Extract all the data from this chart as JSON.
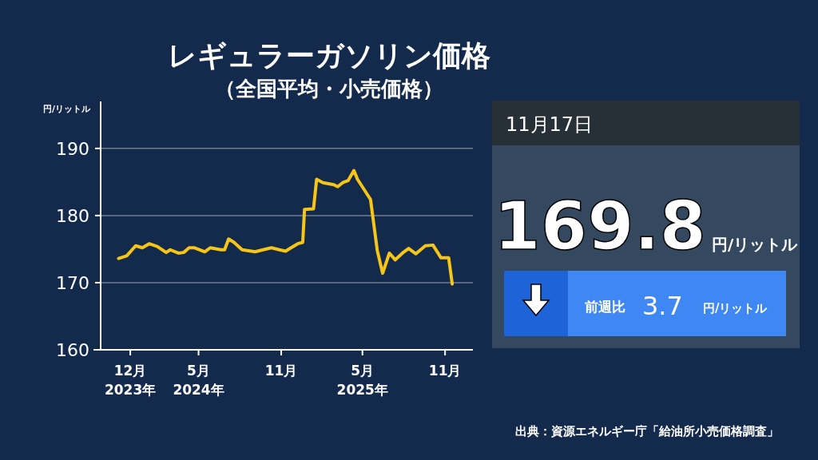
{
  "chart_data": {
    "type": "line",
    "title": "レギュラーガソリン価格",
    "subtitle": "（全国平均・小売価格）",
    "ylabel": "円/リットル",
    "x": [
      "2023-11-05",
      "2023-11-23",
      "2023-12-13",
      "2023-12-28",
      "2024-01-12",
      "2024-01-30",
      "2024-02-19",
      "2024-02-28",
      "2024-03-17",
      "2024-03-29",
      "2024-04-10",
      "2024-04-21",
      "2024-05-15",
      "2024-05-27",
      "2024-06-20",
      "2024-06-28",
      "2024-07-07",
      "2024-07-19",
      "2024-08-06",
      "2024-09-04",
      "2024-10-10",
      "2024-10-28",
      "2024-11-11",
      "2024-11-23",
      "2024-12-08",
      "2024-12-19",
      "2024-12-23",
      "2025-01-12",
      "2025-01-19",
      "2025-02-02",
      "2025-02-26",
      "2025-03-07",
      "2025-03-18",
      "2025-03-30",
      "2025-04-12",
      "2025-04-20",
      "2025-05-19",
      "2025-06-03",
      "2025-06-15",
      "2025-06-30",
      "2025-07-13",
      "2025-07-29",
      "2025-08-12",
      "2025-08-28",
      "2025-09-18",
      "2025-10-05",
      "2025-10-23",
      "2025-11-09",
      "2025-11-17"
    ],
    "series": [
      {
        "color": "#f5c518",
        "values": [
          173.6,
          174.0,
          175.5,
          175.2,
          175.8,
          175.4,
          174.5,
          174.9,
          174.4,
          174.5,
          175.2,
          175.2,
          174.6,
          175.2,
          174.9,
          174.9,
          176.5,
          176.0,
          174.9,
          174.6,
          175.2,
          174.9,
          174.7,
          175.2,
          175.8,
          176.0,
          180.9,
          181.0,
          185.4,
          184.9,
          184.6,
          184.3,
          184.9,
          185.2,
          186.7,
          185.4,
          182.4,
          174.8,
          171.4,
          174.4,
          173.4,
          174.4,
          175.1,
          174.3,
          175.5,
          175.6,
          173.7,
          173.7,
          169.8
        ]
      }
    ],
    "xlim": [
      "2023-09-26",
      "2026-01-02"
    ],
    "xticks": [
      {
        "value": "2023-12-01",
        "label": "12月\n2023年"
      },
      {
        "value": "2024-05-01",
        "label": "5月\n2024年"
      },
      {
        "value": "2024-11-01",
        "label": "11月"
      },
      {
        "value": "2025-05-01",
        "label": "5月\n2025年"
      },
      {
        "value": "2025-11-01",
        "label": "11月"
      }
    ],
    "ylim": [
      160,
      197
    ],
    "yticks": [
      160,
      170,
      180,
      190
    ],
    "grid": "y",
    "marker": "none",
    "line_style": "solid",
    "annotations": [
      "11月17日",
      "169.8",
      "円/リットル",
      "前週比",
      "3.7",
      "円/リットル",
      "出典：資源エネルギー庁「給油所小売価格調査」"
    ]
  }
}
